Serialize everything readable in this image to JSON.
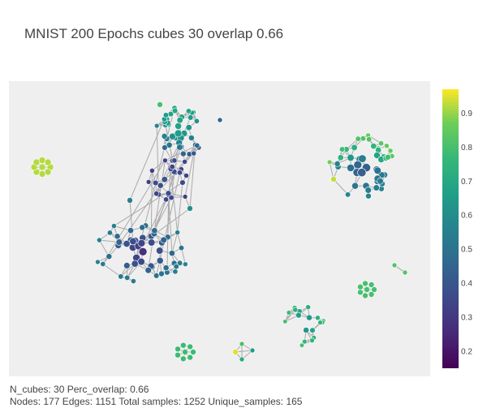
{
  "title": "MNIST 200 Epochs cubes 30 overlap 0.66",
  "footer": {
    "line1": "N_cubes: 30 Perc_overlap: 0.66",
    "line2": "Nodes: 177 Edges: 1151 Total samples: 1252 Unique_samples: 165"
  },
  "colorbar": {
    "range": [
      0.15,
      0.97
    ],
    "ticks": [
      "0.9",
      "0.8",
      "0.7",
      "0.6",
      "0.5",
      "0.4",
      "0.3",
      "0.2"
    ],
    "tick_values": [
      0.9,
      0.8,
      0.7,
      0.6,
      0.5,
      0.4,
      0.3,
      0.2
    ]
  },
  "colors": {
    "plot_background": "#efefef",
    "edge": "#aaaaaa",
    "node_outline": "#ffffff"
  }
}
